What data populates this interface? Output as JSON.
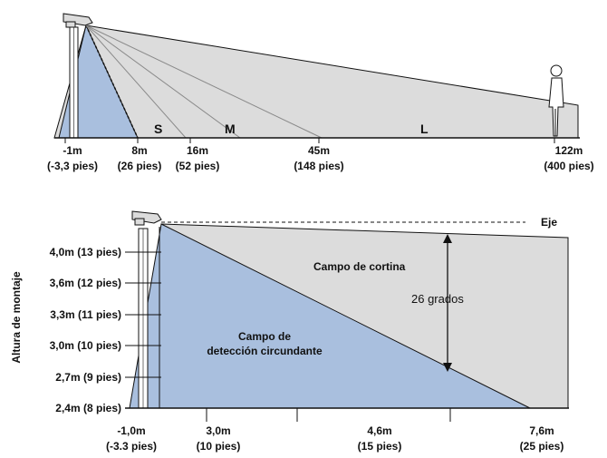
{
  "colors": {
    "field_gray": "#dcdcdc",
    "detection_blue": "#a9bfde",
    "line": "#111111",
    "ray": "#8a8a8a"
  },
  "top": {
    "zones": [
      "S",
      "M",
      "L"
    ],
    "distances": [
      {
        "m": "-1m",
        "ft": "(-3,3 pies)"
      },
      {
        "m": "8m",
        "ft": "(26 pies)"
      },
      {
        "m": "16m",
        "ft": "(52 pies)"
      },
      {
        "m": "45m",
        "ft": "(148 pies)"
      },
      {
        "m": "122m",
        "ft": "(400 pies)"
      }
    ]
  },
  "bottom": {
    "axis_label": "Altura de montaje",
    "eje_label": "Eje",
    "heights": [
      "4,0m (13 pies)",
      "3,6m (12 pies)",
      "3,3m (11 pies)",
      "3,0m (10 pies)",
      "2,7m (9 pies)",
      "2,4m (8 pies)"
    ],
    "curtain_label": "Campo de cortina",
    "angle_label": "26 grados",
    "detection_label_line1": "Campo de",
    "detection_label_line2": "detección circundante",
    "distances": [
      {
        "m": "-1,0m",
        "ft": "(-3.3 pies)"
      },
      {
        "m": "3,0m",
        "ft": "(10 pies)"
      },
      {
        "m": "4,6m",
        "ft": "(15 pies)"
      },
      {
        "m": "7,6m",
        "ft": "(25 pies)"
      }
    ]
  }
}
